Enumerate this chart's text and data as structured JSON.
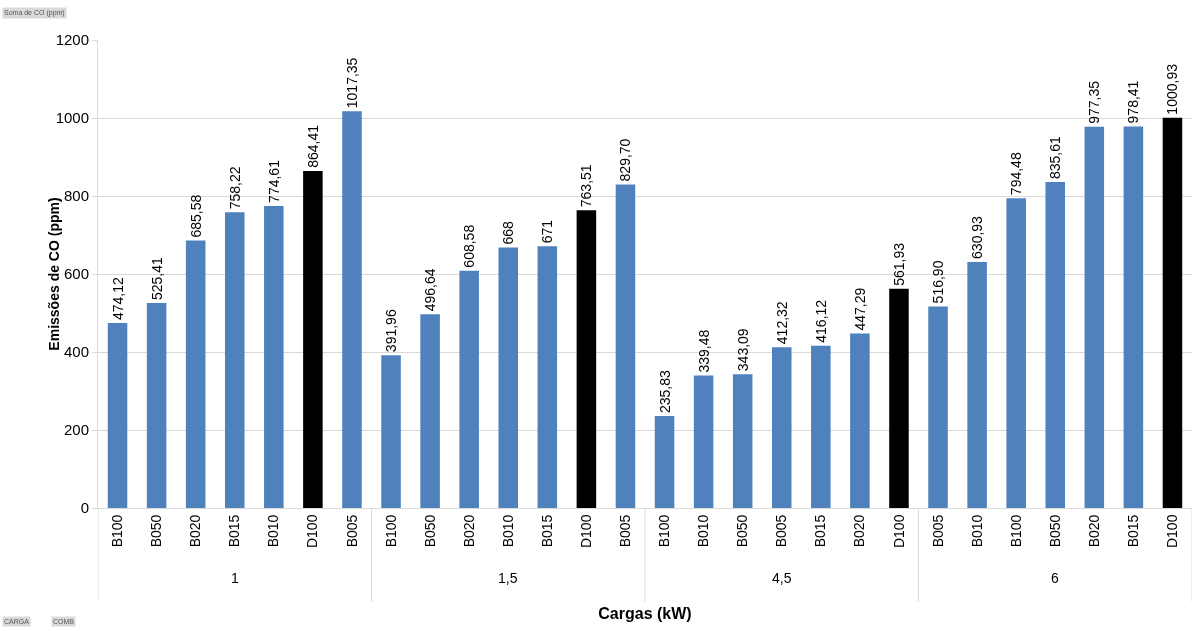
{
  "chart_data": {
    "type": "bar",
    "xlabel": "Cargas (kW)",
    "ylabel": "Emissões de CO (ppm)",
    "categories": [
      "B100",
      "B050",
      "B020",
      "B015",
      "B010",
      "D100",
      "B005",
      "B100",
      "B050",
      "B020",
      "B010",
      "B015",
      "D100",
      "B005",
      "B100",
      "B010",
      "B050",
      "B005",
      "B015",
      "B020",
      "D100",
      "B005",
      "B010",
      "B100",
      "B050",
      "B020",
      "B015",
      "D100"
    ],
    "values": [
      474.12,
      525.41,
      685.58,
      758.22,
      774.61,
      864.41,
      1017.35,
      391.96,
      496.64,
      608.58,
      668,
      671,
      763.51,
      829.7,
      235.83,
      339.48,
      343.09,
      412.32,
      416.12,
      447.29,
      561.93,
      516.9,
      630.93,
      794.48,
      835.61,
      977.35,
      978.41,
      1000.93
    ],
    "value_labels": [
      "474,12",
      "525,41",
      "685,58",
      "758,22",
      "774,61",
      "864,41",
      "1017,35",
      "391,96",
      "496,64",
      "608,58",
      "668",
      "671",
      "763,51",
      "829,70",
      "235,83",
      "339,48",
      "343,09",
      "412,32",
      "416,12",
      "447,29",
      "561,93",
      "516,90",
      "630,93",
      "794,48",
      "835,61",
      "977,35",
      "978,41",
      "1000,93"
    ],
    "colors": [
      "#4f81bd",
      "#4f81bd",
      "#4f81bd",
      "#4f81bd",
      "#4f81bd",
      "#000000",
      "#4f81bd",
      "#4f81bd",
      "#4f81bd",
      "#4f81bd",
      "#4f81bd",
      "#4f81bd",
      "#000000",
      "#4f81bd",
      "#4f81bd",
      "#4f81bd",
      "#4f81bd",
      "#4f81bd",
      "#4f81bd",
      "#4f81bd",
      "#000000",
      "#4f81bd",
      "#4f81bd",
      "#4f81bd",
      "#4f81bd",
      "#4f81bd",
      "#4f81bd",
      "#000000"
    ],
    "ylim": [
      0,
      1200
    ],
    "yticks": [
      0,
      200,
      400,
      600,
      800,
      1000,
      1200
    ],
    "grid": "y",
    "annotations": [
      "1",
      "1,5",
      "4,5",
      "6",
      "Soma de CO (ppm)",
      "CARGA",
      "COMB"
    ]
  }
}
